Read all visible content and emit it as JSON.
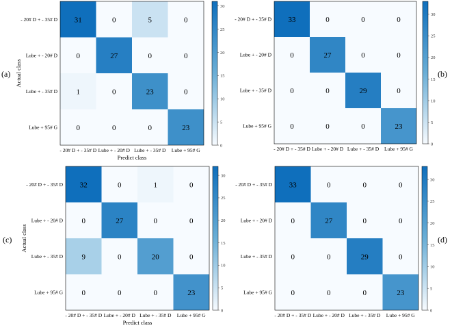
{
  "colors": {
    "low": "#f7fbff",
    "high": "#0f6fbc",
    "grid": "#ffffff",
    "axis": "#000000"
  },
  "chart_data": [
    {
      "type": "heatmap",
      "panel_label": "(a)",
      "label_side": "left",
      "xlabel": "Predict class",
      "ylabel": "Actual class",
      "row_labels": [
        "- 20# D + - 35# D",
        "Lube + - 20# D",
        "Lube + - 35# D",
        "Lube + 95# G"
      ],
      "col_labels": [
        "- 20# D + - 35# D",
        "Lube + - 20# D",
        "Lube + - 35# D",
        "Lube + 95# G"
      ],
      "matrix": [
        [
          31,
          0,
          5,
          0
        ],
        [
          0,
          27,
          0,
          0
        ],
        [
          1,
          0,
          23,
          0
        ],
        [
          0,
          0,
          0,
          23
        ]
      ],
      "colorbar": {
        "min": 0,
        "max": 31,
        "ticks": [
          0,
          5,
          10,
          15,
          20,
          25,
          30
        ]
      }
    },
    {
      "type": "heatmap",
      "panel_label": "(b)",
      "label_side": "right",
      "xlabel": "",
      "ylabel": "",
      "row_labels": [
        "- 20# D + - 35# D",
        "Lube + - 20# D",
        "Lube + - 35# D",
        "Lube + 95# G"
      ],
      "col_labels": [
        "- 20# D + - 35# D",
        "Lube + - 20# D",
        "Lube + - 35# D",
        "Lube + 95# G"
      ],
      "matrix": [
        [
          33,
          0,
          0,
          0
        ],
        [
          0,
          27,
          0,
          0
        ],
        [
          0,
          0,
          29,
          0
        ],
        [
          0,
          0,
          0,
          23
        ]
      ],
      "colorbar": {
        "min": 0,
        "max": 33,
        "ticks": [
          0,
          5,
          10,
          15,
          20,
          25,
          30
        ]
      }
    },
    {
      "type": "heatmap",
      "panel_label": "(c)",
      "label_side": "left",
      "xlabel": "Predict class",
      "ylabel": "Actual class",
      "row_labels": [
        "- 20# D + - 35# D",
        "Lube + - 20# D",
        "Lube + - 35# D",
        "Lube + 95# G"
      ],
      "col_labels": [
        "- 20# D + - 35# D",
        "Lube + - 20# D",
        "Lube + - 35# D",
        "Lube + 95# G"
      ],
      "matrix": [
        [
          32,
          0,
          1,
          0
        ],
        [
          0,
          27,
          0,
          0
        ],
        [
          9,
          0,
          20,
          0
        ],
        [
          0,
          0,
          0,
          23
        ]
      ],
      "colorbar": {
        "min": 0,
        "max": 32,
        "ticks": [
          0,
          5,
          10,
          15,
          20,
          25,
          30
        ]
      }
    },
    {
      "type": "heatmap",
      "panel_label": "(d)",
      "label_side": "right",
      "xlabel": "",
      "ylabel": "",
      "row_labels": [
        "- 20# D + - 35# D",
        "Lube + - 20# D",
        "Lube + - 35# D",
        "Lube + 95# G"
      ],
      "col_labels": [
        "- 20# D + - 35# D",
        "Lube + - 20# D",
        "Lube + - 35# D",
        "Lube + 95# G"
      ],
      "matrix": [
        [
          33,
          0,
          0,
          0
        ],
        [
          0,
          27,
          0,
          0
        ],
        [
          0,
          0,
          29,
          0
        ],
        [
          0,
          0,
          0,
          23
        ]
      ],
      "colorbar": {
        "min": 0,
        "max": 33,
        "ticks": [
          0,
          5,
          10,
          15,
          20,
          25,
          30
        ]
      }
    }
  ]
}
